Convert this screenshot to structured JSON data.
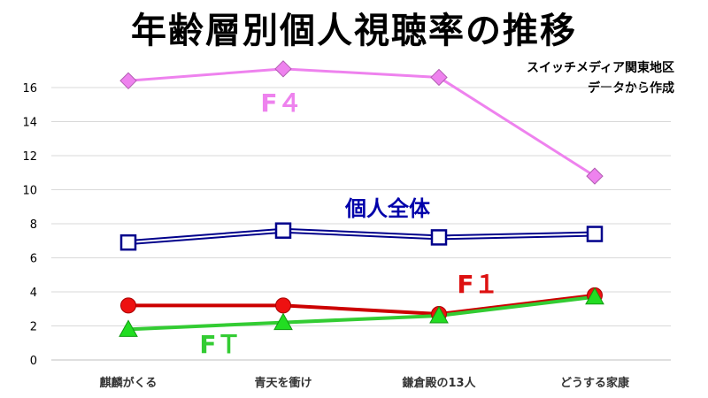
{
  "chart_data": {
    "type": "line",
    "title": "年齢層別個人視聴率の推移",
    "note_lines": [
      "スイッチメディア関東地区",
      "データから作成"
    ],
    "categories": [
      "麒麟がくる",
      "青天を衝け",
      "鎌倉殿の13人",
      "どうする家康"
    ],
    "ylim": [
      0,
      16
    ],
    "yticks": [
      0,
      2,
      4,
      6,
      8,
      10,
      12,
      14,
      16
    ],
    "grid": true,
    "series": [
      {
        "name": "F４",
        "values": [
          16.4,
          17.1,
          16.6,
          10.8
        ],
        "color": "#ee82ee",
        "marker": "diamond"
      },
      {
        "name": "個人全体",
        "values": [
          6.9,
          7.6,
          7.2,
          7.4
        ],
        "color": "#00008b",
        "marker": "square"
      },
      {
        "name": "F１",
        "values": [
          3.2,
          3.2,
          2.7,
          3.8
        ],
        "color": "#cc0000",
        "marker": "circle"
      },
      {
        "name": "FＴ",
        "values": [
          1.8,
          2.2,
          2.6,
          3.7
        ],
        "color": "#33cc33",
        "marker": "triangle"
      }
    ]
  }
}
